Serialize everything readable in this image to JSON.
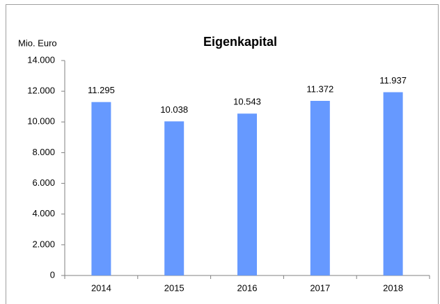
{
  "chart_data": {
    "type": "bar",
    "title": "Eigenkapital",
    "y_label": "Mio. Euro",
    "categories": [
      "2014",
      "2015",
      "2016",
      "2017",
      "2018"
    ],
    "values": [
      11295,
      10038,
      10543,
      11372,
      11937
    ],
    "value_labels": [
      "11.295",
      "10.038",
      "10.543",
      "11.372",
      "11.937"
    ],
    "color": "#6699ff",
    "ylim": [
      0,
      14000
    ],
    "yticks": [
      0,
      {
        "value": 2000,
        "label": "2.000"
      },
      {
        "value": 4000,
        "label": "4.000"
      },
      {
        "value": 6000,
        "label": "6.000"
      },
      {
        "value": 8000,
        "label": "8.000"
      },
      {
        "value": 10000,
        "label": "10.000"
      },
      {
        "value": 12000,
        "label": "12.000"
      },
      {
        "value": 14000,
        "label": "14.000"
      }
    ],
    "grid": false
  }
}
